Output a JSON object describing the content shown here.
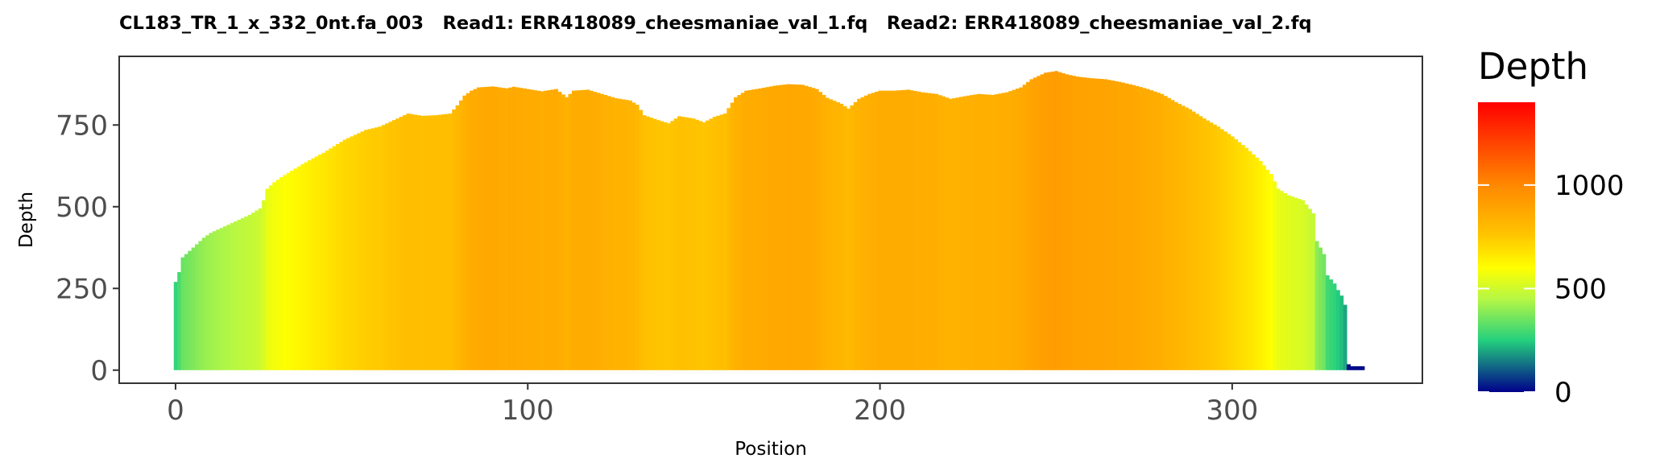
{
  "chart_data": {
    "type": "bar",
    "title": "CL183_TR_1_x_332_0nt.fa_003   Read1: ERR418089_cheesmaniae_val_1.fq   Read2: ERR418089_cheesmaniae_val_2.fq",
    "xlabel": "Position",
    "ylabel": "Depth",
    "xlim": [
      -16,
      354
    ],
    "ylim": [
      -40,
      960
    ],
    "x_ticks": [
      0,
      100,
      200,
      300
    ],
    "x_tick_labels": [
      "0",
      "100",
      "200",
      "300"
    ],
    "y_ticks": [
      0,
      250,
      500,
      750
    ],
    "y_tick_labels": [
      "0",
      "250",
      "500",
      "750"
    ],
    "profile_points": [
      [
        0,
        270
      ],
      [
        1,
        300
      ],
      [
        2,
        345
      ],
      [
        4,
        365
      ],
      [
        6,
        385
      ],
      [
        8,
        405
      ],
      [
        10,
        420
      ],
      [
        12,
        430
      ],
      [
        15,
        445
      ],
      [
        18,
        460
      ],
      [
        21,
        475
      ],
      [
        24,
        495
      ],
      [
        25,
        520
      ],
      [
        26,
        555
      ],
      [
        28,
        575
      ],
      [
        30,
        590
      ],
      [
        33,
        610
      ],
      [
        36,
        630
      ],
      [
        39,
        648
      ],
      [
        42,
        665
      ],
      [
        45,
        685
      ],
      [
        48,
        705
      ],
      [
        51,
        720
      ],
      [
        54,
        735
      ],
      [
        58,
        745
      ],
      [
        62,
        765
      ],
      [
        66,
        785
      ],
      [
        70,
        778
      ],
      [
        74,
        780
      ],
      [
        78,
        785
      ],
      [
        80,
        810
      ],
      [
        82,
        840
      ],
      [
        84,
        855
      ],
      [
        86,
        865
      ],
      [
        90,
        868
      ],
      [
        94,
        862
      ],
      [
        96,
        867
      ],
      [
        100,
        860
      ],
      [
        104,
        853
      ],
      [
        108,
        860
      ],
      [
        111,
        835
      ],
      [
        113,
        855
      ],
      [
        117,
        858
      ],
      [
        121,
        845
      ],
      [
        125,
        832
      ],
      [
        129,
        825
      ],
      [
        131,
        812
      ],
      [
        133,
        780
      ],
      [
        137,
        765
      ],
      [
        140,
        755
      ],
      [
        143,
        777
      ],
      [
        147,
        770
      ],
      [
        150,
        758
      ],
      [
        153,
        775
      ],
      [
        156,
        785
      ],
      [
        159,
        835
      ],
      [
        162,
        855
      ],
      [
        166,
        862
      ],
      [
        170,
        870
      ],
      [
        174,
        875
      ],
      [
        178,
        873
      ],
      [
        182,
        860
      ],
      [
        185,
        833
      ],
      [
        189,
        815
      ],
      [
        191,
        800
      ],
      [
        194,
        830
      ],
      [
        197,
        845
      ],
      [
        200,
        855
      ],
      [
        204,
        855
      ],
      [
        208,
        858
      ],
      [
        212,
        850
      ],
      [
        216,
        845
      ],
      [
        220,
        830
      ],
      [
        224,
        838
      ],
      [
        228,
        845
      ],
      [
        232,
        842
      ],
      [
        236,
        850
      ],
      [
        240,
        865
      ],
      [
        243,
        890
      ],
      [
        247,
        910
      ],
      [
        250,
        915
      ],
      [
        253,
        905
      ],
      [
        256,
        898
      ],
      [
        260,
        893
      ],
      [
        264,
        890
      ],
      [
        268,
        882
      ],
      [
        272,
        872
      ],
      [
        276,
        860
      ],
      [
        280,
        845
      ],
      [
        284,
        820
      ],
      [
        288,
        798
      ],
      [
        292,
        770
      ],
      [
        296,
        745
      ],
      [
        300,
        715
      ],
      [
        304,
        680
      ],
      [
        308,
        640
      ],
      [
        311,
        600
      ],
      [
        313,
        555
      ],
      [
        316,
        535
      ],
      [
        320,
        520
      ],
      [
        323,
        480
      ],
      [
        324,
        395
      ],
      [
        326,
        355
      ],
      [
        327,
        290
      ],
      [
        329,
        265
      ],
      [
        330,
        245
      ],
      [
        331,
        228
      ],
      [
        332,
        200
      ],
      [
        333,
        18
      ],
      [
        334,
        12
      ],
      [
        336,
        12
      ],
      [
        337,
        12
      ]
    ],
    "color_scale": {
      "title": "Depth",
      "min": 0,
      "max": 1400,
      "ticks": [
        0,
        500,
        1000
      ],
      "tick_labels": [
        "0",
        "500",
        "1000"
      ],
      "stops": [
        {
          "value": 0,
          "color": "#00008b"
        },
        {
          "value": 250,
          "color": "#24d07e"
        },
        {
          "value": 450,
          "color": "#b6f744"
        },
        {
          "value": 600,
          "color": "#ffff00"
        },
        {
          "value": 760,
          "color": "#ffc400"
        },
        {
          "value": 1000,
          "color": "#ff8800"
        },
        {
          "value": 1400,
          "color": "#ff0000"
        }
      ]
    },
    "grid": false,
    "legend_position": "right"
  }
}
